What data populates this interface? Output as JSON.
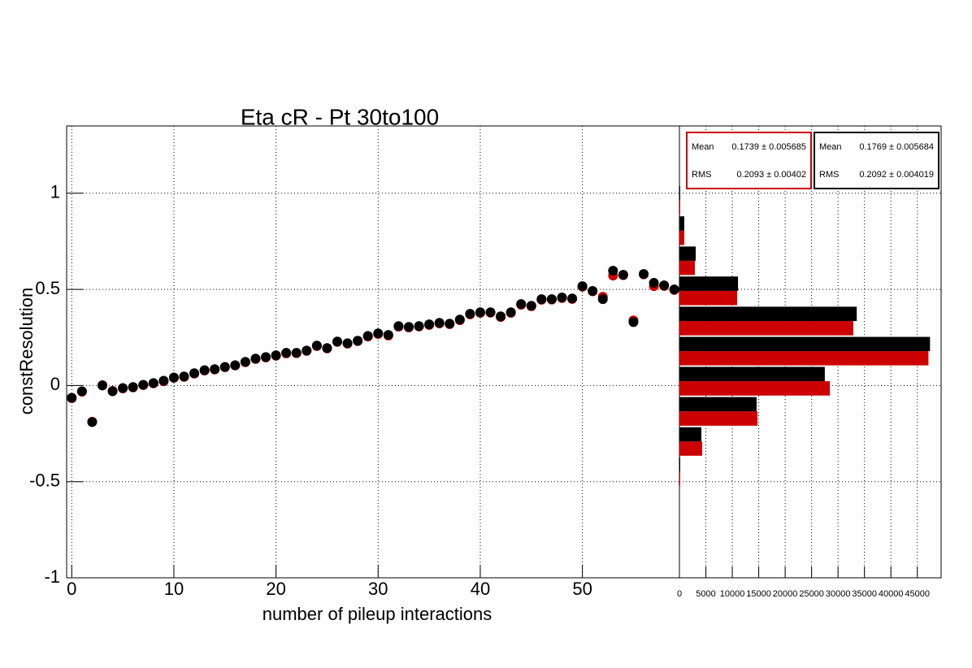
{
  "chart_data": [
    {
      "type": "scatter",
      "title": "Eta cR - Pt 30to100",
      "x_label": "number of pileup interactions",
      "y_label": "constResolution",
      "x": [
        0,
        1,
        2,
        3,
        4,
        5,
        6,
        7,
        8,
        9,
        10,
        11,
        12,
        13,
        14,
        15,
        16,
        17,
        18,
        19,
        20,
        21,
        22,
        23,
        24,
        25,
        26,
        27,
        28,
        29,
        30,
        31,
        32,
        33,
        34,
        35,
        36,
        37,
        38,
        39,
        40,
        41,
        42,
        43,
        44,
        45,
        46,
        47,
        48,
        49,
        50,
        51,
        52,
        53,
        54,
        55,
        56,
        57,
        58,
        59
      ],
      "series": [
        {
          "color": "#cc0000",
          "values": [
            -0.066,
            -0.032,
            -0.188,
            0.002,
            -0.028,
            -0.015,
            -0.01,
            0.002,
            0.011,
            0.022,
            0.04,
            0.045,
            0.062,
            0.078,
            0.083,
            0.095,
            0.104,
            0.121,
            0.138,
            0.146,
            0.155,
            0.167,
            0.168,
            0.18,
            0.205,
            0.193,
            0.227,
            0.218,
            0.231,
            0.255,
            0.268,
            0.26,
            0.306,
            0.302,
            0.307,
            0.315,
            0.323,
            0.319,
            0.34,
            0.37,
            0.378,
            0.379,
            0.356,
            0.378,
            0.42,
            0.412,
            0.446,
            0.447,
            0.455,
            0.45,
            0.514,
            0.49,
            0.462,
            0.572,
            0.574,
            0.339,
            0.578,
            0.517,
            0.518,
            0.497
          ]
        },
        {
          "color": "#000000",
          "values": [
            -0.064,
            -0.03,
            -0.19,
            0.0,
            -0.03,
            -0.013,
            -0.008,
            0.004,
            0.013,
            0.025,
            0.042,
            0.047,
            0.064,
            0.08,
            0.085,
            0.097,
            0.106,
            0.123,
            0.14,
            0.148,
            0.157,
            0.17,
            0.17,
            0.182,
            0.208,
            0.195,
            0.229,
            0.22,
            0.233,
            0.258,
            0.271,
            0.263,
            0.309,
            0.305,
            0.309,
            0.318,
            0.326,
            0.322,
            0.343,
            0.373,
            0.381,
            0.381,
            0.36,
            0.381,
            0.424,
            0.415,
            0.449,
            0.449,
            0.458,
            0.453,
            0.517,
            0.492,
            0.449,
            0.597,
            0.576,
            0.33,
            0.58,
            0.534,
            0.521,
            0.5
          ]
        }
      ],
      "xlim": [
        -0.5,
        59.5
      ],
      "ylim": [
        -1,
        1.35
      ],
      "xticks": [
        0,
        10,
        20,
        30,
        40,
        50
      ],
      "yticks": [
        -1,
        -0.5,
        0,
        0.5,
        1
      ],
      "grid": true
    },
    {
      "type": "histogram",
      "orientation": "horizontal",
      "bins": [
        -1,
        -0.843,
        -0.687,
        -0.53,
        -0.373,
        -0.217,
        -0.06,
        0.097,
        0.253,
        0.41,
        0.567,
        0.723,
        0.88,
        1.037,
        1.193,
        1.35
      ],
      "series": [
        {
          "color": "#cc0000",
          "counts": [
            0,
            0,
            0,
            150,
            4300,
            14770,
            28460,
            47100,
            32900,
            10920,
            2920,
            920,
            150,
            0,
            0
          ],
          "stats": {
            "mean_name": "Mean",
            "mean": "0.1739 ± 0.005685",
            "rms_name": "RMS",
            "rms": "0.2093 ± 0.00402"
          }
        },
        {
          "color": "#000000",
          "counts": [
            0,
            0,
            0,
            150,
            4150,
            14600,
            27500,
            47400,
            33540,
            11080,
            3080,
            920,
            150,
            0,
            0
          ],
          "stats": {
            "mean_name": "Mean",
            "mean": "0.1769 ± 0.005684",
            "rms_name": "RMS",
            "rms": "0.2092 ± 0.004019"
          }
        }
      ],
      "xlim": [
        0,
        49500
      ],
      "ylim": [
        -1,
        1.35
      ],
      "xticks": [
        0,
        5000,
        10000,
        15000,
        20000,
        25000,
        30000,
        35000,
        40000,
        45000
      ],
      "grid": true
    }
  ]
}
